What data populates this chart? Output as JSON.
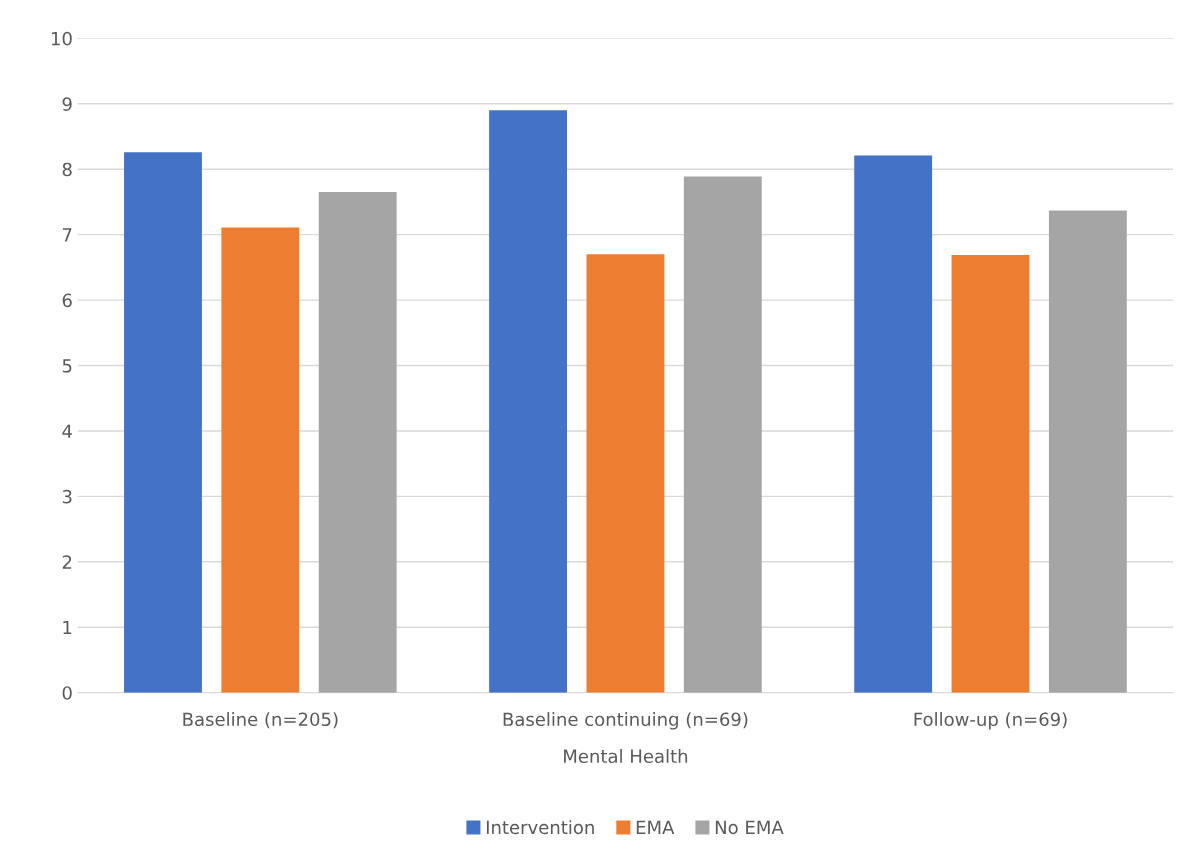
{
  "chart_data": {
    "type": "bar",
    "xlabel": "Mental Health",
    "categories": [
      "Baseline (n=205)",
      "Baseline continuing (n=69)",
      "Follow-up (n=69)"
    ],
    "series": [
      {
        "name": "Intervention",
        "color": "#4472c4",
        "values": [
          8.26,
          8.9,
          8.21
        ]
      },
      {
        "name": "EMA",
        "color": "#ed7d31",
        "values": [
          7.11,
          6.7,
          6.69
        ]
      },
      {
        "name": "No EMA",
        "color": "#a5a5a5",
        "values": [
          7.65,
          7.89,
          7.37
        ]
      }
    ],
    "ylim": [
      0,
      10
    ],
    "yticks": [
      0,
      1,
      2,
      3,
      4,
      5,
      6,
      7,
      8,
      9,
      10
    ],
    "grid": "y",
    "legend": "bottom"
  }
}
